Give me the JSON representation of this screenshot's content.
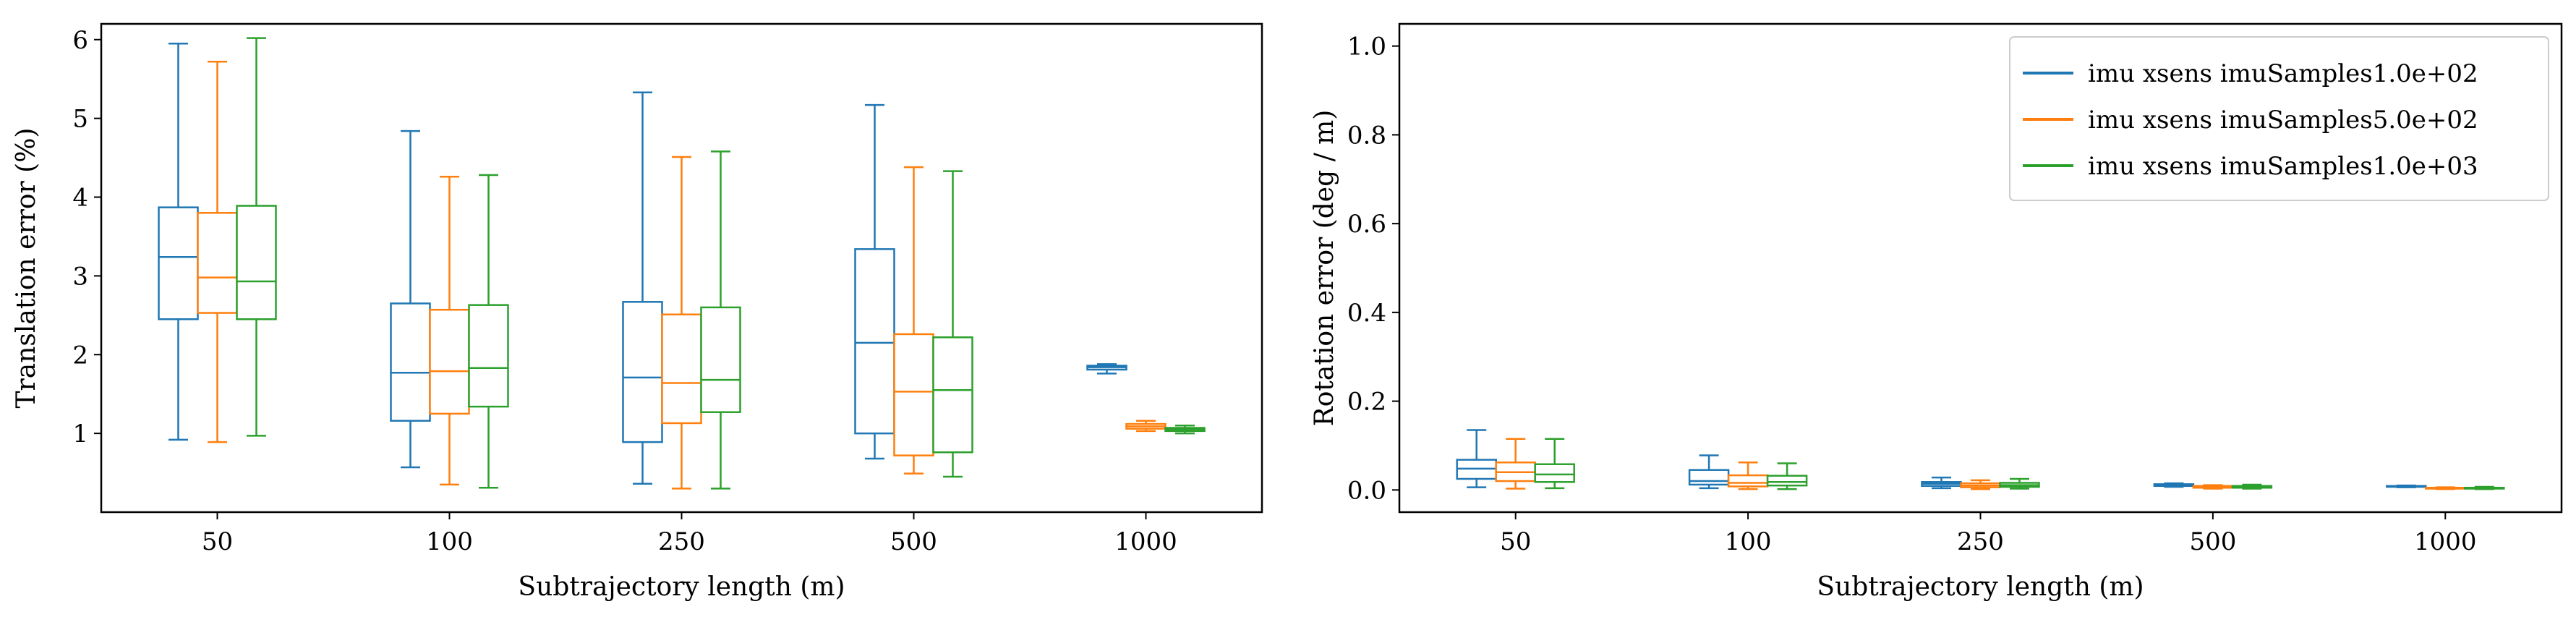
{
  "colors": {
    "series": [
      "#1f77b4",
      "#ff7f0e",
      "#2ca02c"
    ]
  },
  "chart_data": [
    {
      "type": "box",
      "name": "translation",
      "xlabel": "Subtrajectory length (m)",
      "ylabel": "Translation error (%)",
      "categories": [
        "50",
        "100",
        "250",
        "500",
        "1000"
      ],
      "ylim": [
        0,
        6.2
      ],
      "yticks": [
        1,
        2,
        3,
        4,
        5,
        6
      ],
      "series": [
        {
          "name": "imu xsens imuSamples1.0e+02",
          "boxes": [
            {
              "whislo": 0.92,
              "q1": 2.45,
              "med": 3.24,
              "q3": 3.87,
              "whishi": 5.95
            },
            {
              "whislo": 0.57,
              "q1": 1.16,
              "med": 1.77,
              "q3": 2.65,
              "whishi": 4.84
            },
            {
              "whislo": 0.36,
              "q1": 0.89,
              "med": 1.71,
              "q3": 2.67,
              "whishi": 5.33
            },
            {
              "whislo": 0.68,
              "q1": 1.0,
              "med": 2.15,
              "q3": 3.34,
              "whishi": 5.17
            },
            {
              "whislo": 1.76,
              "q1": 1.81,
              "med": 1.84,
              "q3": 1.86,
              "whishi": 1.88
            }
          ]
        },
        {
          "name": "imu xsens imuSamples5.0e+02",
          "boxes": [
            {
              "whislo": 0.89,
              "q1": 2.53,
              "med": 2.98,
              "q3": 3.8,
              "whishi": 5.72
            },
            {
              "whislo": 0.35,
              "q1": 1.25,
              "med": 1.79,
              "q3": 2.57,
              "whishi": 4.26
            },
            {
              "whislo": 0.3,
              "q1": 1.13,
              "med": 1.64,
              "q3": 2.51,
              "whishi": 4.51
            },
            {
              "whislo": 0.49,
              "q1": 0.72,
              "med": 1.53,
              "q3": 2.26,
              "whishi": 4.38
            },
            {
              "whislo": 1.03,
              "q1": 1.06,
              "med": 1.09,
              "q3": 1.12,
              "whishi": 1.16
            }
          ]
        },
        {
          "name": "imu xsens imuSamples1.0e+03",
          "boxes": [
            {
              "whislo": 0.97,
              "q1": 2.45,
              "med": 2.93,
              "q3": 3.89,
              "whishi": 6.02
            },
            {
              "whislo": 0.31,
              "q1": 1.34,
              "med": 1.83,
              "q3": 2.63,
              "whishi": 4.28
            },
            {
              "whislo": 0.3,
              "q1": 1.27,
              "med": 1.68,
              "q3": 2.6,
              "whishi": 4.58
            },
            {
              "whislo": 0.45,
              "q1": 0.76,
              "med": 1.55,
              "q3": 2.22,
              "whishi": 4.33
            },
            {
              "whislo": 1.0,
              "q1": 1.03,
              "med": 1.05,
              "q3": 1.07,
              "whishi": 1.1
            }
          ]
        }
      ]
    },
    {
      "type": "box",
      "name": "rotation",
      "xlabel": "Subtrajectory length (m)",
      "ylabel": "Rotation error (deg / m)",
      "categories": [
        "50",
        "100",
        "250",
        "500",
        "1000"
      ],
      "ylim": [
        -0.05,
        1.05
      ],
      "yticks": [
        0.0,
        0.2,
        0.4,
        0.6,
        0.8,
        1.0
      ],
      "legend": "top-right",
      "series": [
        {
          "name": "imu xsens imuSamples1.0e+02",
          "boxes": [
            {
              "whislo": 0.006,
              "q1": 0.025,
              "med": 0.048,
              "q3": 0.068,
              "whishi": 0.135
            },
            {
              "whislo": 0.004,
              "q1": 0.012,
              "med": 0.02,
              "q3": 0.045,
              "whishi": 0.078
            },
            {
              "whislo": 0.004,
              "q1": 0.009,
              "med": 0.014,
              "q3": 0.018,
              "whishi": 0.028
            },
            {
              "whislo": 0.007,
              "q1": 0.009,
              "med": 0.011,
              "q3": 0.013,
              "whishi": 0.015
            },
            {
              "whislo": 0.006,
              "q1": 0.007,
              "med": 0.008,
              "q3": 0.009,
              "whishi": 0.01
            }
          ]
        },
        {
          "name": "imu xsens imuSamples5.0e+02",
          "boxes": [
            {
              "whislo": 0.003,
              "q1": 0.02,
              "med": 0.04,
              "q3": 0.062,
              "whishi": 0.115
            },
            {
              "whislo": 0.002,
              "q1": 0.008,
              "med": 0.016,
              "q3": 0.033,
              "whishi": 0.062
            },
            {
              "whislo": 0.002,
              "q1": 0.006,
              "med": 0.01,
              "q3": 0.015,
              "whishi": 0.022
            },
            {
              "whislo": 0.003,
              "q1": 0.005,
              "med": 0.007,
              "q3": 0.009,
              "whishi": 0.011
            },
            {
              "whislo": 0.002,
              "q1": 0.003,
              "med": 0.004,
              "q3": 0.005,
              "whishi": 0.006
            }
          ]
        },
        {
          "name": "imu xsens imuSamples1.0e+03",
          "boxes": [
            {
              "whislo": 0.004,
              "q1": 0.018,
              "med": 0.035,
              "q3": 0.058,
              "whishi": 0.115
            },
            {
              "whislo": 0.002,
              "q1": 0.01,
              "med": 0.018,
              "q3": 0.032,
              "whishi": 0.06
            },
            {
              "whislo": 0.003,
              "q1": 0.007,
              "med": 0.011,
              "q3": 0.016,
              "whishi": 0.025
            },
            {
              "whislo": 0.003,
              "q1": 0.005,
              "med": 0.007,
              "q3": 0.009,
              "whishi": 0.012
            },
            {
              "whislo": 0.002,
              "q1": 0.003,
              "med": 0.004,
              "q3": 0.005,
              "whishi": 0.007
            }
          ]
        }
      ]
    }
  ]
}
